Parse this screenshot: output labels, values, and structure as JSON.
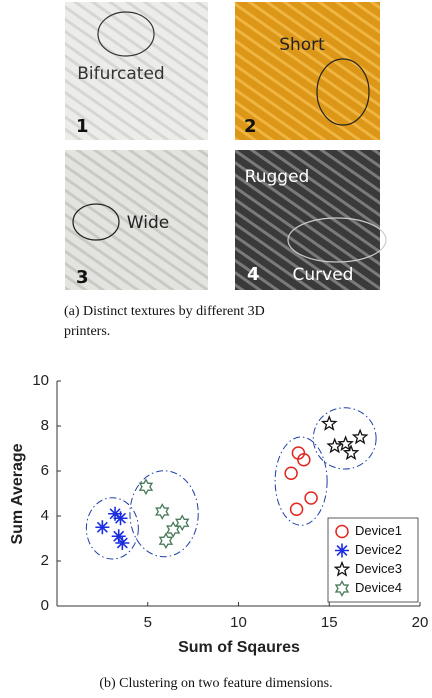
{
  "figure_a": {
    "panels": [
      {
        "number": "1",
        "label": "Bifurcated"
      },
      {
        "number": "2",
        "label": "Short"
      },
      {
        "number": "3",
        "label": "Wide"
      },
      {
        "number": "4",
        "labels": [
          "Rugged",
          "Curved"
        ]
      }
    ],
    "caption_lines": [
      "(a) Distinct textures by different 3D",
      "printers."
    ]
  },
  "chart_data": {
    "type": "scatter",
    "xlabel": "Sum of Sqaures",
    "ylabel": "Sum Average",
    "xlim": [
      0,
      20
    ],
    "xticks": [
      5,
      10,
      15,
      20
    ],
    "ylim": [
      0,
      10
    ],
    "yticks": [
      0,
      2,
      4,
      6,
      8,
      10
    ],
    "grid": false,
    "legend": "lower right",
    "series": [
      {
        "name": "Device1",
        "color": "#e3261f",
        "marker": "circle",
        "x": [
          13.3,
          13.6,
          12.9,
          14.0,
          13.2
        ],
        "values": [
          6.8,
          6.5,
          5.9,
          4.8,
          4.3
        ]
      },
      {
        "name": "Device2",
        "color": "#1a2ee0",
        "marker": "asterisk",
        "x": [
          2.5,
          3.2,
          3.5,
          3.4,
          3.6
        ],
        "values": [
          3.5,
          4.1,
          3.9,
          3.1,
          2.8
        ]
      },
      {
        "name": "Device3",
        "color": "#111111",
        "marker": "pentagram",
        "x": [
          15.0,
          15.3,
          15.9,
          16.2,
          16.7
        ],
        "values": [
          8.1,
          7.1,
          7.2,
          6.8,
          7.5
        ]
      },
      {
        "name": "Device4",
        "color": "#4a7a5a",
        "marker": "hexagram",
        "x": [
          4.9,
          5.8,
          6.0,
          6.4,
          6.9
        ],
        "values": [
          5.3,
          4.2,
          2.9,
          3.4,
          3.7
        ]
      }
    ],
    "caption": "(b) Clustering on two feature dimensions."
  }
}
